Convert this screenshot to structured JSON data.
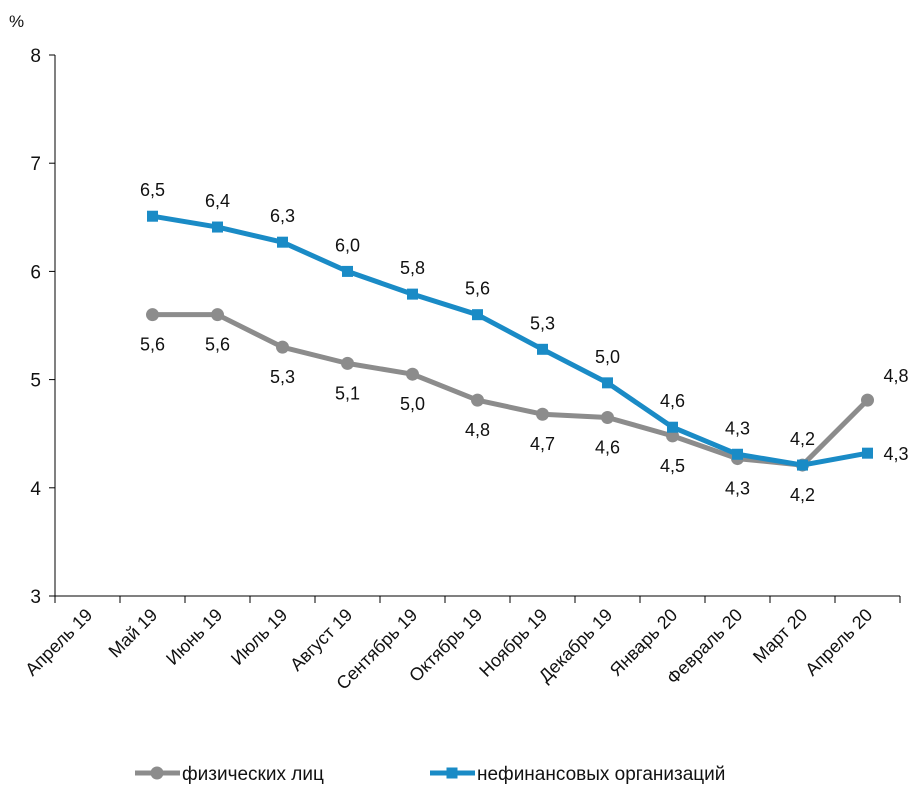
{
  "chart_data": {
    "type": "line",
    "title": "",
    "xlabel": "",
    "ylabel": "%",
    "ylim": [
      3,
      8
    ],
    "yticks": [
      3,
      4,
      5,
      6,
      7,
      8
    ],
    "grid": false,
    "legend_position": "bottom",
    "categories": [
      "Апрель 19",
      "Май 19",
      "Июнь 19",
      "Июль 19",
      "Август 19",
      "Сентябрь 19",
      "Октябрь 19",
      "Ноябрь 19",
      "Декабрь 19",
      "Январь 20",
      "Февраль 20",
      "Март 20",
      "Апрель 20"
    ],
    "series": [
      {
        "name": "физических лиц",
        "color": "#8c8c8c",
        "marker": "circle",
        "values": [
          null,
          5.6,
          5.6,
          5.3,
          5.15,
          5.05,
          4.81,
          4.68,
          4.65,
          4.48,
          4.27,
          4.21,
          4.81
        ],
        "labels": [
          "",
          "5,6",
          "5,6",
          "5,3",
          "5,1",
          "5,0",
          "4,8",
          "4,7",
          "4,6",
          "4,5",
          "4,3",
          "4,2",
          "4,8"
        ],
        "label_positions": [
          "",
          "below",
          "below",
          "below",
          "below",
          "below",
          "below",
          "below",
          "below",
          "below",
          "below",
          "below",
          "right-above"
        ]
      },
      {
        "name": "нефинансовых организаций",
        "color": "#1a8bc6",
        "marker": "square",
        "values": [
          null,
          6.51,
          6.41,
          6.27,
          6.0,
          5.79,
          5.6,
          5.28,
          4.97,
          4.56,
          4.31,
          4.21,
          4.32
        ],
        "labels": [
          "",
          "6,5",
          "6,4",
          "6,3",
          "6,0",
          "5,8",
          "5,6",
          "5,3",
          "5,0",
          "4,6",
          "4,3",
          "4,2",
          "4,3"
        ],
        "label_positions": [
          "",
          "above",
          "above",
          "above",
          "above",
          "above",
          "above",
          "above",
          "above",
          "above",
          "above",
          "above",
          "right"
        ]
      }
    ]
  }
}
